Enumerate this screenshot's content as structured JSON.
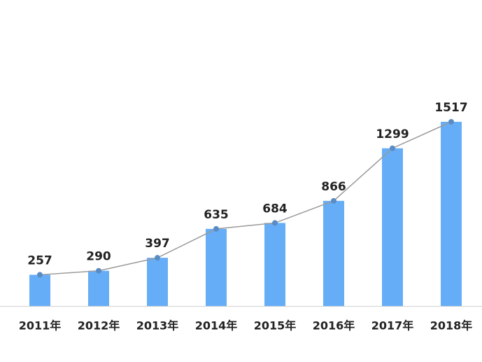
{
  "chart_data": {
    "type": "bar",
    "categories": [
      "2011年",
      "2012年",
      "2013年",
      "2014年",
      "2015年",
      "2016年",
      "2017年",
      "2018年"
    ],
    "values": [
      257,
      290,
      397,
      635,
      684,
      866,
      1299,
      1517
    ],
    "color": "#66adf7",
    "line_color": "#9a9a9a",
    "marker_color": "#5a8cc4"
  }
}
